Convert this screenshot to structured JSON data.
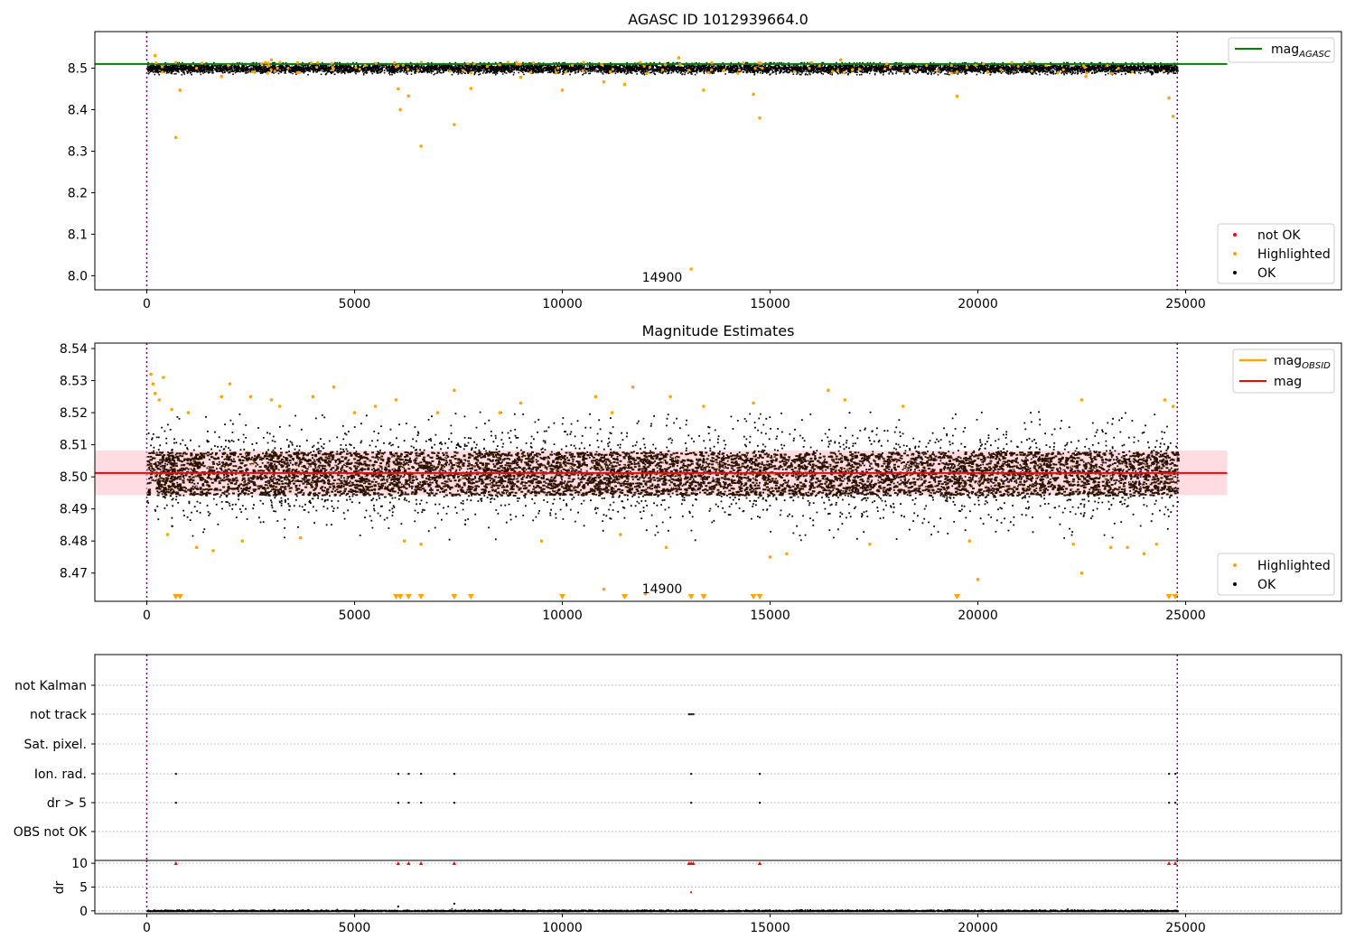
{
  "chart_data": [
    {
      "type": "scatter",
      "title": "AGASC ID 1012939664.0",
      "xlim": [
        -1250,
        28750
      ],
      "ylim": [
        7.966,
        8.588
      ],
      "x_ticks": [
        0,
        5000,
        10000,
        15000,
        20000,
        25000
      ],
      "y_ticks": [
        8.0,
        8.1,
        8.2,
        8.3,
        8.4,
        8.5
      ],
      "y_tick_labels": [
        "8.0",
        "8.1",
        "8.2",
        "8.3",
        "8.4",
        "8.5"
      ],
      "obs_boundaries": [
        0,
        24800
      ],
      "reference_line": {
        "name": "mag_AGASC",
        "y": 8.51,
        "x_range": [
          -1250,
          26000
        ],
        "color": "#008000"
      },
      "ok_band": {
        "center": 8.501,
        "half_width": 0.0125,
        "x_range": [
          0,
          24800
        ]
      },
      "annotation": {
        "text": "14900",
        "x": 12400,
        "y": 7.99
      },
      "series": [
        {
          "name": "not OK",
          "color": "#ff0000",
          "points": []
        },
        {
          "name": "Highlighted",
          "color": "#ffa500",
          "points": [
            [
              700,
              8.333
            ],
            [
              800,
              8.447
            ],
            [
              6050,
              8.45
            ],
            [
              6100,
              8.4
            ],
            [
              6300,
              8.433
            ],
            [
              6600,
              8.312
            ],
            [
              7400,
              8.364
            ],
            [
              7800,
              8.451
            ],
            [
              10000,
              8.447
            ],
            [
              11000,
              8.467
            ],
            [
              11500,
              8.461
            ],
            [
              13100,
              8.016
            ],
            [
              13400,
              8.447
            ],
            [
              14600,
              8.437
            ],
            [
              14750,
              8.38
            ],
            [
              19500,
              8.432
            ],
            [
              24600,
              8.428
            ],
            [
              24700,
              8.384
            ],
            [
              200,
              8.53
            ],
            [
              3000,
              8.52
            ],
            [
              12800,
              8.525
            ],
            [
              16700,
              8.52
            ],
            [
              22600,
              8.48
            ],
            [
              1800,
              8.48
            ],
            [
              9000,
              8.478
            ]
          ]
        },
        {
          "name": "OK",
          "color": "#000000",
          "points": []
        }
      ],
      "legend_top": [
        {
          "label": "mag",
          "subscript": "AGASC",
          "color": "#008000"
        }
      ],
      "legend_bottom": [
        "not OK",
        "Highlighted",
        "OK"
      ]
    },
    {
      "type": "scatter",
      "title": "Magnitude Estimates",
      "xlim": [
        -1250,
        28750
      ],
      "ylim": [
        8.4612,
        8.5417
      ],
      "x_ticks": [
        0,
        5000,
        10000,
        15000,
        20000,
        25000
      ],
      "y_ticks": [
        8.47,
        8.48,
        8.49,
        8.5,
        8.51,
        8.52,
        8.53,
        8.54
      ],
      "y_tick_labels": [
        "8.47",
        "8.48",
        "8.49",
        "8.50",
        "8.51",
        "8.52",
        "8.53",
        "8.54"
      ],
      "obs_boundaries": [
        0,
        24800
      ],
      "mag_line": {
        "name": "mag",
        "y": 8.5012,
        "x_range": [
          -1250,
          26000
        ],
        "color": "#ff0000"
      },
      "mag_band": {
        "y_range": [
          8.4943,
          8.5082
        ],
        "x_range": [
          -1250,
          26000
        ],
        "color": "#ffc0c8"
      },
      "obsid_segments": [],
      "annotation": {
        "text": "14900",
        "x": 12400,
        "y": 8.4625
      },
      "series": [
        {
          "name": "Highlighted",
          "color": "#ffa500",
          "points": [
            [
              100,
              8.532
            ],
            [
              150,
              8.529
            ],
            [
              200,
              8.526
            ],
            [
              300,
              8.524
            ],
            [
              400,
              8.531
            ],
            [
              600,
              8.521
            ],
            [
              1000,
              8.52
            ],
            [
              1800,
              8.525
            ],
            [
              2000,
              8.529
            ],
            [
              2500,
              8.525
            ],
            [
              3000,
              8.524
            ],
            [
              3200,
              8.522
            ],
            [
              4000,
              8.525
            ],
            [
              4500,
              8.528
            ],
            [
              5000,
              8.52
            ],
            [
              5500,
              8.522
            ],
            [
              6000,
              8.524
            ],
            [
              7000,
              8.52
            ],
            [
              7400,
              8.527
            ],
            [
              8500,
              8.52
            ],
            [
              9000,
              8.523
            ],
            [
              10800,
              8.525
            ],
            [
              11200,
              8.52
            ],
            [
              11700,
              8.528
            ],
            [
              12600,
              8.525
            ],
            [
              13400,
              8.522
            ],
            [
              14600,
              8.523
            ],
            [
              16400,
              8.527
            ],
            [
              16800,
              8.524
            ],
            [
              18200,
              8.522
            ],
            [
              22500,
              8.524
            ],
            [
              24500,
              8.524
            ],
            [
              24700,
              8.522
            ],
            [
              500,
              8.482
            ],
            [
              1200,
              8.478
            ],
            [
              1600,
              8.477
            ],
            [
              2300,
              8.48
            ],
            [
              3700,
              8.481
            ],
            [
              6200,
              8.48
            ],
            [
              6600,
              8.479
            ],
            [
              9500,
              8.48
            ],
            [
              11400,
              8.482
            ],
            [
              12500,
              8.478
            ],
            [
              15000,
              8.475
            ],
            [
              15400,
              8.476
            ],
            [
              17400,
              8.479
            ],
            [
              19800,
              8.48
            ],
            [
              20000,
              8.468
            ],
            [
              22300,
              8.479
            ],
            [
              22500,
              8.47
            ],
            [
              23200,
              8.478
            ],
            [
              23600,
              8.478
            ],
            [
              24000,
              8.476
            ],
            [
              24300,
              8.479
            ],
            [
              11000,
              8.465
            ],
            [
              12000,
              8.4635
            ]
          ]
        },
        {
          "name": "Highlighted (below range)",
          "color": "#ffa500",
          "marker": "triangle-down",
          "points": [
            [
              700,
              8.4618
            ],
            [
              800,
              8.4618
            ],
            [
              6000,
              8.4618
            ],
            [
              6100,
              8.4618
            ],
            [
              6300,
              8.4618
            ],
            [
              6600,
              8.4618
            ],
            [
              7400,
              8.4618
            ],
            [
              7800,
              8.4618
            ],
            [
              10000,
              8.4618
            ],
            [
              11500,
              8.4618
            ],
            [
              13100,
              8.4618
            ],
            [
              13400,
              8.4618
            ],
            [
              14600,
              8.4618
            ],
            [
              14750,
              8.4618
            ],
            [
              19500,
              8.4618
            ],
            [
              24600,
              8.4618
            ],
            [
              24750,
              8.4618
            ]
          ]
        },
        {
          "name": "OK",
          "color": "#000000",
          "points": []
        }
      ],
      "legend_top": [
        {
          "label": "mag",
          "subscript": "OBSID",
          "color": "#ffa500"
        },
        {
          "label": "mag",
          "subscript": "",
          "color": "#ff0000"
        }
      ],
      "legend_bottom": [
        "Highlighted",
        "OK"
      ]
    },
    {
      "type": "scatter",
      "title": "",
      "xlim": [
        -1250,
        28750
      ],
      "x_ticks": [
        0,
        5000,
        10000,
        15000,
        20000,
        25000
      ],
      "obs_boundaries": [
        0,
        24800
      ],
      "flag_labels": [
        "not Kalman",
        "not track",
        "Sat. pixel.",
        "Ion. rad.",
        "dr > 5",
        "OBS not OK"
      ],
      "flags": {
        "not Kalman": [],
        "not track": [
          13050,
          13100,
          13150
        ],
        "Sat. pixel.": [],
        "Ion. rad.": [
          700,
          6050,
          6300,
          6600,
          7400,
          13100,
          14750,
          24600,
          24750
        ],
        "dr > 5": [
          700,
          6050,
          6300,
          6600,
          7400,
          13100,
          14750,
          24600,
          24750
        ],
        "OBS not OK": []
      },
      "dr": {
        "ylabel": "dr",
        "ylim": [
          -0.6,
          10.6
        ],
        "y_ticks": [
          0,
          5,
          10
        ],
        "clip_value": 10,
        "clipped_x": [
          700,
          6050,
          6300,
          6600,
          7400,
          13050,
          13100,
          13150,
          14750,
          24600,
          24750
        ],
        "high_points": [
          [
            7400,
            1.5
          ],
          [
            13100,
            3.9
          ],
          [
            6050,
            0.9
          ]
        ]
      }
    }
  ]
}
